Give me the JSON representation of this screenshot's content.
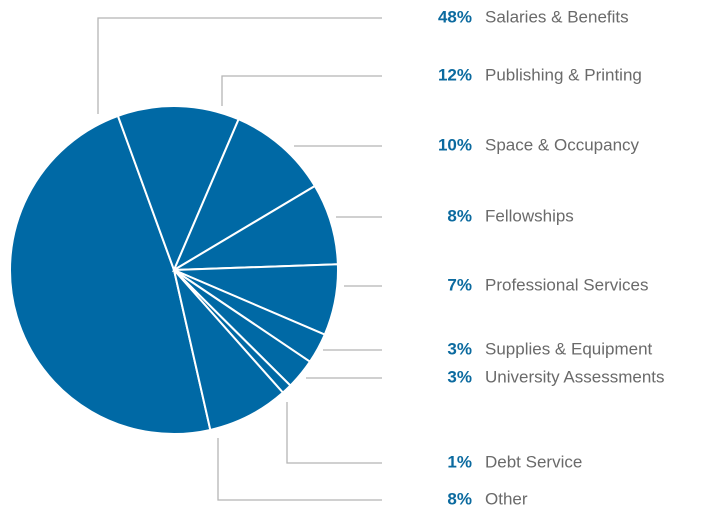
{
  "chart_data": {
    "type": "pie",
    "categories": [
      "Salaries & Benefits",
      "Publishing & Printing",
      "Space & Occupancy",
      "Fellowships",
      "Professional Services",
      "Supplies & Equipment",
      "University Assessments",
      "Debt Service",
      "Other"
    ],
    "values": [
      48,
      12,
      10,
      8,
      7,
      3,
      3,
      1,
      8
    ],
    "value_labels": [
      "48%",
      "12%",
      "10%",
      "8%",
      "7%",
      "3%",
      "3%",
      "1%",
      "8%"
    ],
    "color": "#0069a5"
  }
}
